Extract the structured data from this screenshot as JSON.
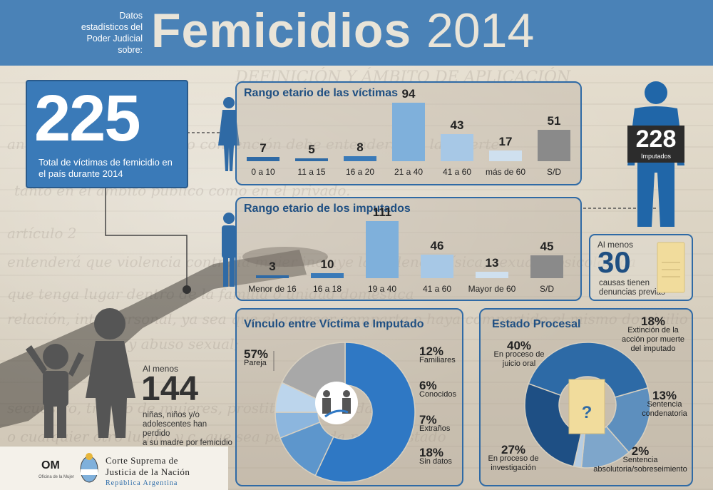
{
  "header": {
    "subtitle_lines": [
      "Datos",
      "estadísticos del",
      "Poder Judicial",
      "sobre:"
    ],
    "title": "Femicidios",
    "year": "2014"
  },
  "total": {
    "number": "225",
    "caption": "Total de víctimas de femicidio en el país durante 2014"
  },
  "victims": {
    "title": "Rango etario de las víctimas",
    "bars": [
      {
        "label": "0 a 10",
        "value": 7,
        "color": "#2f6aa5"
      },
      {
        "label": "11 a 15",
        "value": 5,
        "color": "#2f6aa5"
      },
      {
        "label": "16 a 20",
        "value": 8,
        "color": "#3a7ab8"
      },
      {
        "label": "21 a 40",
        "value": 94,
        "color": "#7fb0db"
      },
      {
        "label": "41 a 60",
        "value": 43,
        "color": "#a7c8e6"
      },
      {
        "label": "más de 60",
        "value": 17,
        "color": "#cfe0ef"
      },
      {
        "label": "S/D",
        "value": 51,
        "color": "#8a8a8a"
      }
    ]
  },
  "accused": {
    "title": "Rango etario de los imputados",
    "bars": [
      {
        "label": "Menor de 16",
        "value": 3,
        "color": "#2f6aa5"
      },
      {
        "label": "16 a 18",
        "value": 10,
        "color": "#3a7ab8"
      },
      {
        "label": "19 a 40",
        "value": 111,
        "color": "#7fb0db"
      },
      {
        "label": "41 a 60",
        "value": 46,
        "color": "#a7c8e6"
      },
      {
        "label": "Mayor de 60",
        "value": 13,
        "color": "#cfe0ef"
      },
      {
        "label": "S/D",
        "value": 45,
        "color": "#8a8a8a"
      }
    ]
  },
  "imputados": {
    "number": "228",
    "caption": "Imputados"
  },
  "causas": {
    "prefix": "Al menos",
    "number": "30",
    "text_lines": [
      "causas tienen",
      "denuncias previas"
    ]
  },
  "children": {
    "prefix": "Al menos",
    "number": "144",
    "text_lines": [
      "niñas, niños y/o",
      "adolescentes han perdido",
      "a su madre por femicidio"
    ]
  },
  "vinculo": {
    "title": "Vínculo entre Víctima e Imputado",
    "items": [
      {
        "pct": "57%",
        "label": "Pareja",
        "value": 57,
        "color": "#2f78c4"
      },
      {
        "pct": "12%",
        "label": "Familiares",
        "value": 12,
        "color": "#5d96cc"
      },
      {
        "pct": "6%",
        "label": "Conocidos",
        "value": 6,
        "color": "#8cb6de"
      },
      {
        "pct": "7%",
        "label": "Extraños",
        "value": 7,
        "color": "#bcd5ec"
      },
      {
        "pct": "18%",
        "label": "Sin datos",
        "value": 18,
        "color": "#a8a8a8"
      }
    ]
  },
  "estado": {
    "title": "Estado Procesal",
    "items": [
      {
        "pct": "40%",
        "label_lines": [
          "En proceso de",
          "juicio oral"
        ],
        "value": 40,
        "color": "#2d6aa6"
      },
      {
        "pct": "18%",
        "label_lines": [
          "Extinción de la",
          "acción por muerte",
          "del imputado"
        ],
        "value": 18,
        "color": "#5d8fbe"
      },
      {
        "pct": "13%",
        "label_lines": [
          "Sentencia",
          "condenatoria"
        ],
        "value": 13,
        "color": "#7ea6cb"
      },
      {
        "pct": "2%",
        "label_lines": [
          "Sentencia",
          "absolutoria/sobreseimiento"
        ],
        "value": 2,
        "color": "#b7cde2"
      },
      {
        "pct": "27%",
        "label_lines": [
          "En proceso de",
          "investigación"
        ],
        "value": 27,
        "color": "#1e4f84"
      }
    ]
  },
  "footer": {
    "om": "OM",
    "om_sub": "Oficina de la Mujer",
    "cs_line1": "Corte Suprema de",
    "cs_line2": "Justicia de la Nación",
    "cs_line3": "República Argentina"
  },
  "colors": {
    "accent": "#4a82b7",
    "panel_border": "#2f6aa5",
    "title_blue": "#1f4f82"
  }
}
